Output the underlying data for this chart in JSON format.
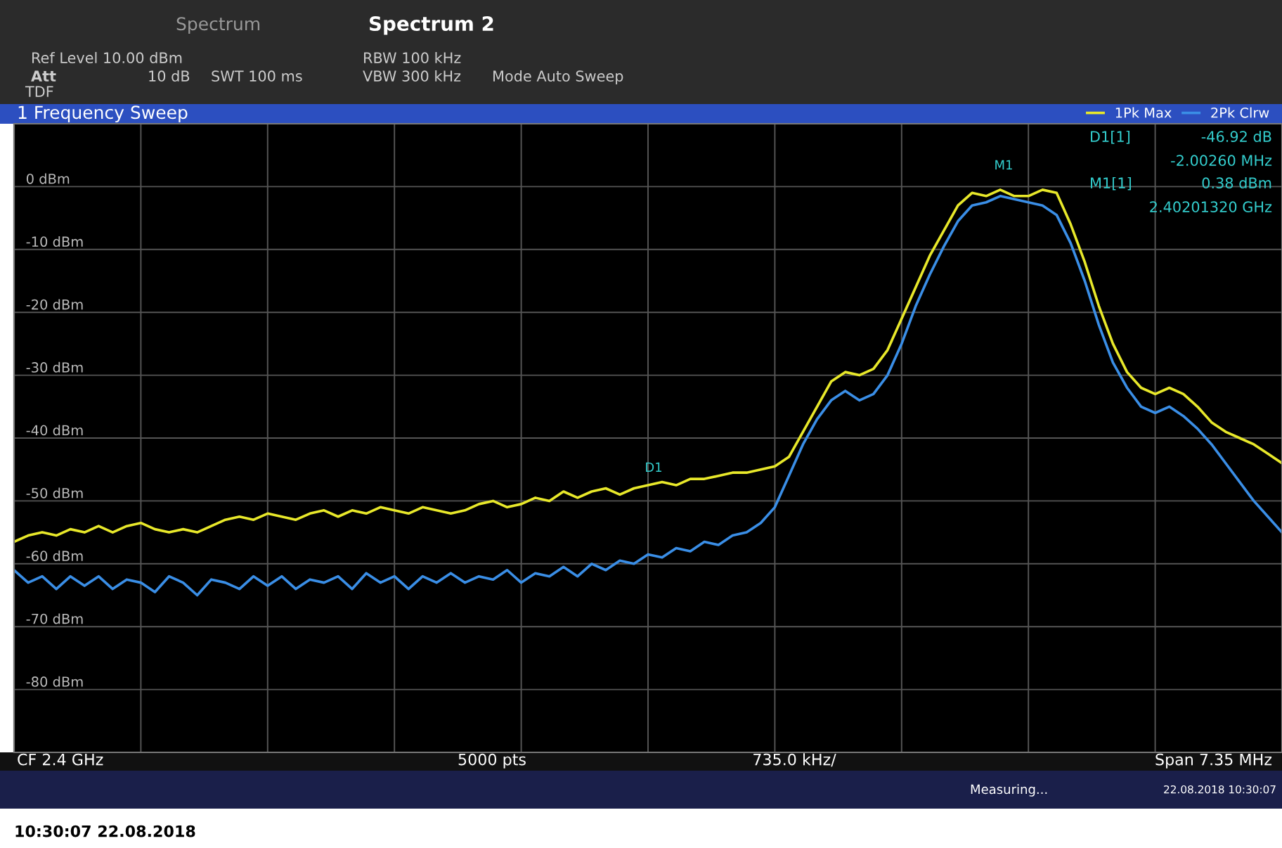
{
  "chart_data": {
    "type": "line",
    "title": "1 Frequency Sweep",
    "categories": [
      null,
      null,
      null,
      null,
      null,
      null,
      null,
      null,
      null,
      null,
      null,
      null,
      null,
      null,
      null,
      null,
      null,
      null,
      null,
      null,
      null,
      null,
      null,
      null,
      null,
      null,
      null,
      null,
      null,
      null,
      null,
      null,
      null,
      null,
      null,
      null,
      null,
      null,
      null,
      null,
      null,
      null,
      null,
      null,
      null,
      null,
      null,
      null,
      null,
      null,
      null,
      null,
      null,
      null,
      null,
      null,
      null,
      null,
      null,
      null,
      null,
      null,
      null,
      null,
      null,
      null,
      null,
      null,
      null,
      null,
      null,
      null,
      null,
      null,
      null,
      null,
      null,
      null,
      null,
      null,
      null,
      null,
      null,
      null,
      null,
      null,
      null,
      null,
      null,
      null,
      null
    ],
    "series": [
      {
        "name": "1Pk Max",
        "color": "#e8e82a",
        "values": [
          -56.5,
          -55.5,
          -55,
          -55.5,
          -54.5,
          -55,
          -54,
          -55,
          -54,
          -53.5,
          -54.5,
          -55,
          -54.5,
          -55,
          -54,
          -53,
          -52.5,
          -53,
          -52,
          -52.5,
          -53,
          -52,
          -51.5,
          -52.5,
          -51.5,
          -52,
          -51,
          -51.5,
          -52,
          -51,
          -51.5,
          -52,
          -51.5,
          -50.5,
          -50,
          -51,
          -50.5,
          -49.5,
          -50,
          -48.5,
          -49.5,
          -48.5,
          -48,
          -49,
          -48,
          -47.5,
          -47,
          -47.5,
          -46.5,
          -46.5,
          -46,
          -45.5,
          -45.5,
          -45,
          -44.5,
          -43,
          -39,
          -35,
          -31,
          -29.5,
          -30,
          -29,
          -26,
          -21,
          -16,
          -11,
          -7,
          -3,
          -1,
          -1.5,
          -0.5,
          -1.5,
          -1.5,
          -0.5,
          -1,
          -6,
          -12,
          -19,
          -25,
          -29.5,
          -32,
          -33,
          -32,
          -33,
          -35,
          -37.5,
          -39,
          -40,
          -41,
          -42.5,
          -44
        ]
      },
      {
        "name": "2Pk Clrw",
        "color": "#3a8ee6",
        "values": [
          -61,
          -63,
          -62,
          -64,
          -62,
          -63.5,
          -62,
          -64,
          -62.5,
          -63,
          -64.5,
          -62,
          -63,
          -65,
          -62.5,
          -63,
          -64,
          -62,
          -63.5,
          -62,
          -64,
          -62.5,
          -63,
          -62,
          -64,
          -61.5,
          -63,
          -62,
          -64,
          -62,
          -63,
          -61.5,
          -63,
          -62,
          -62.5,
          -61,
          -63,
          -61.5,
          -62,
          -60.5,
          -62,
          -60,
          -61,
          -59.5,
          -60,
          -58.5,
          -59,
          -57.5,
          -58,
          -56.5,
          -57,
          -55.5,
          -55,
          -53.5,
          -51,
          -46,
          -41,
          -37,
          -34,
          -32.5,
          -34,
          -33,
          -30,
          -25,
          -19,
          -14,
          -9.5,
          -5.5,
          -3,
          -2.5,
          -1.5,
          -2,
          -2.5,
          -3,
          -4.5,
          -9,
          -15,
          -22,
          -28,
          -32,
          -35,
          -36,
          -35,
          -36.5,
          -38.5,
          -41,
          -44,
          -47,
          -50,
          -52.5,
          -55
        ]
      }
    ],
    "ylim": [
      -90,
      10
    ],
    "yticks": [
      {
        "value": 0,
        "label": "0 dBm"
      },
      {
        "value": -10,
        "label": "-10 dBm"
      },
      {
        "value": -20,
        "label": "-20 dBm"
      },
      {
        "value": -30,
        "label": "-30 dBm"
      },
      {
        "value": -40,
        "label": "-40 dBm"
      },
      {
        "value": -50,
        "label": "-50 dBm"
      },
      {
        "value": -60,
        "label": "-60 dBm"
      },
      {
        "value": -70,
        "label": "-70 dBm"
      },
      {
        "value": -80,
        "label": "-80 dBm"
      }
    ],
    "tick_labels": "y",
    "grid": true,
    "legend": "top right",
    "line_style": "solid",
    "marker": "none",
    "annotations": [
      "Spectrum",
      "Spectrum 2",
      "Ref Level 10.00 dBm",
      "Att",
      "10 dB",
      "SWT 100 ms",
      "RBW 100 kHz",
      "VBW 300 kHz",
      "Mode Auto Sweep",
      "TDF",
      "D1[1]",
      "-46.92 dB",
      "-2.00260 MHz",
      "M1[1]",
      "0.38 dBm",
      "2.40201320 GHz",
      "M1",
      "D1",
      "CF 2.4 GHz",
      "5000 pts",
      "735.0 kHz/",
      "Span 7.35 MHz",
      "Measuring...",
      "22.08.2018 10:30:07",
      "10:30:07 22.08.2018"
    ]
  }
}
